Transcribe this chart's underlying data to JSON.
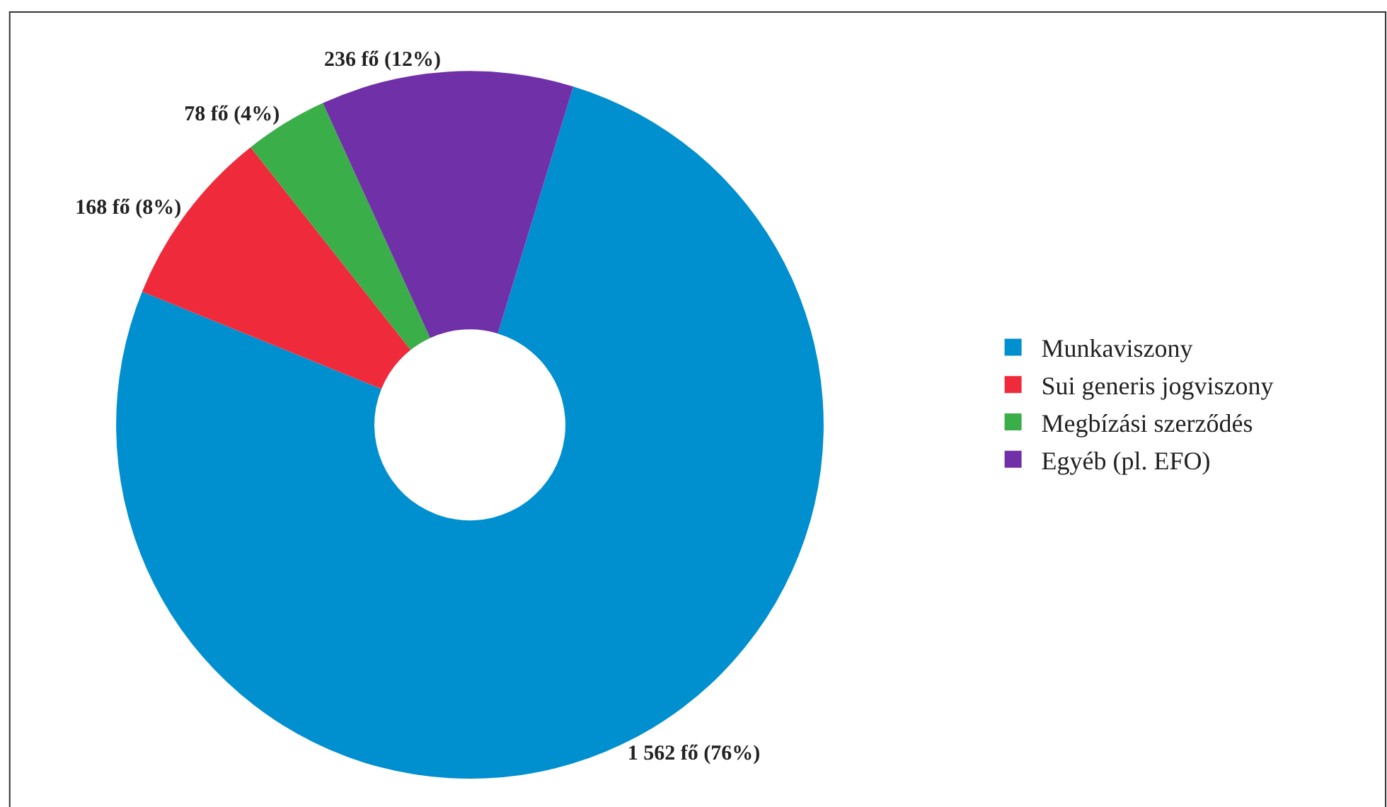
{
  "chart_data": {
    "type": "donut",
    "categories": [
      "Munkaviszony",
      "Sui generis jogviszony",
      "Megbízási szerződés",
      "Egyéb (pl. EFO)"
    ],
    "values": [
      1562,
      168,
      78,
      236
    ],
    "colors": [
      "#008fcf",
      "#ee2a3b",
      "#3aae48",
      "#7030a8"
    ],
    "value_labels": [
      "1 562 fő (76%)",
      "168 fő (8%)",
      "78 fő (4%)",
      "236 fő (12%)"
    ],
    "legend": "right"
  }
}
